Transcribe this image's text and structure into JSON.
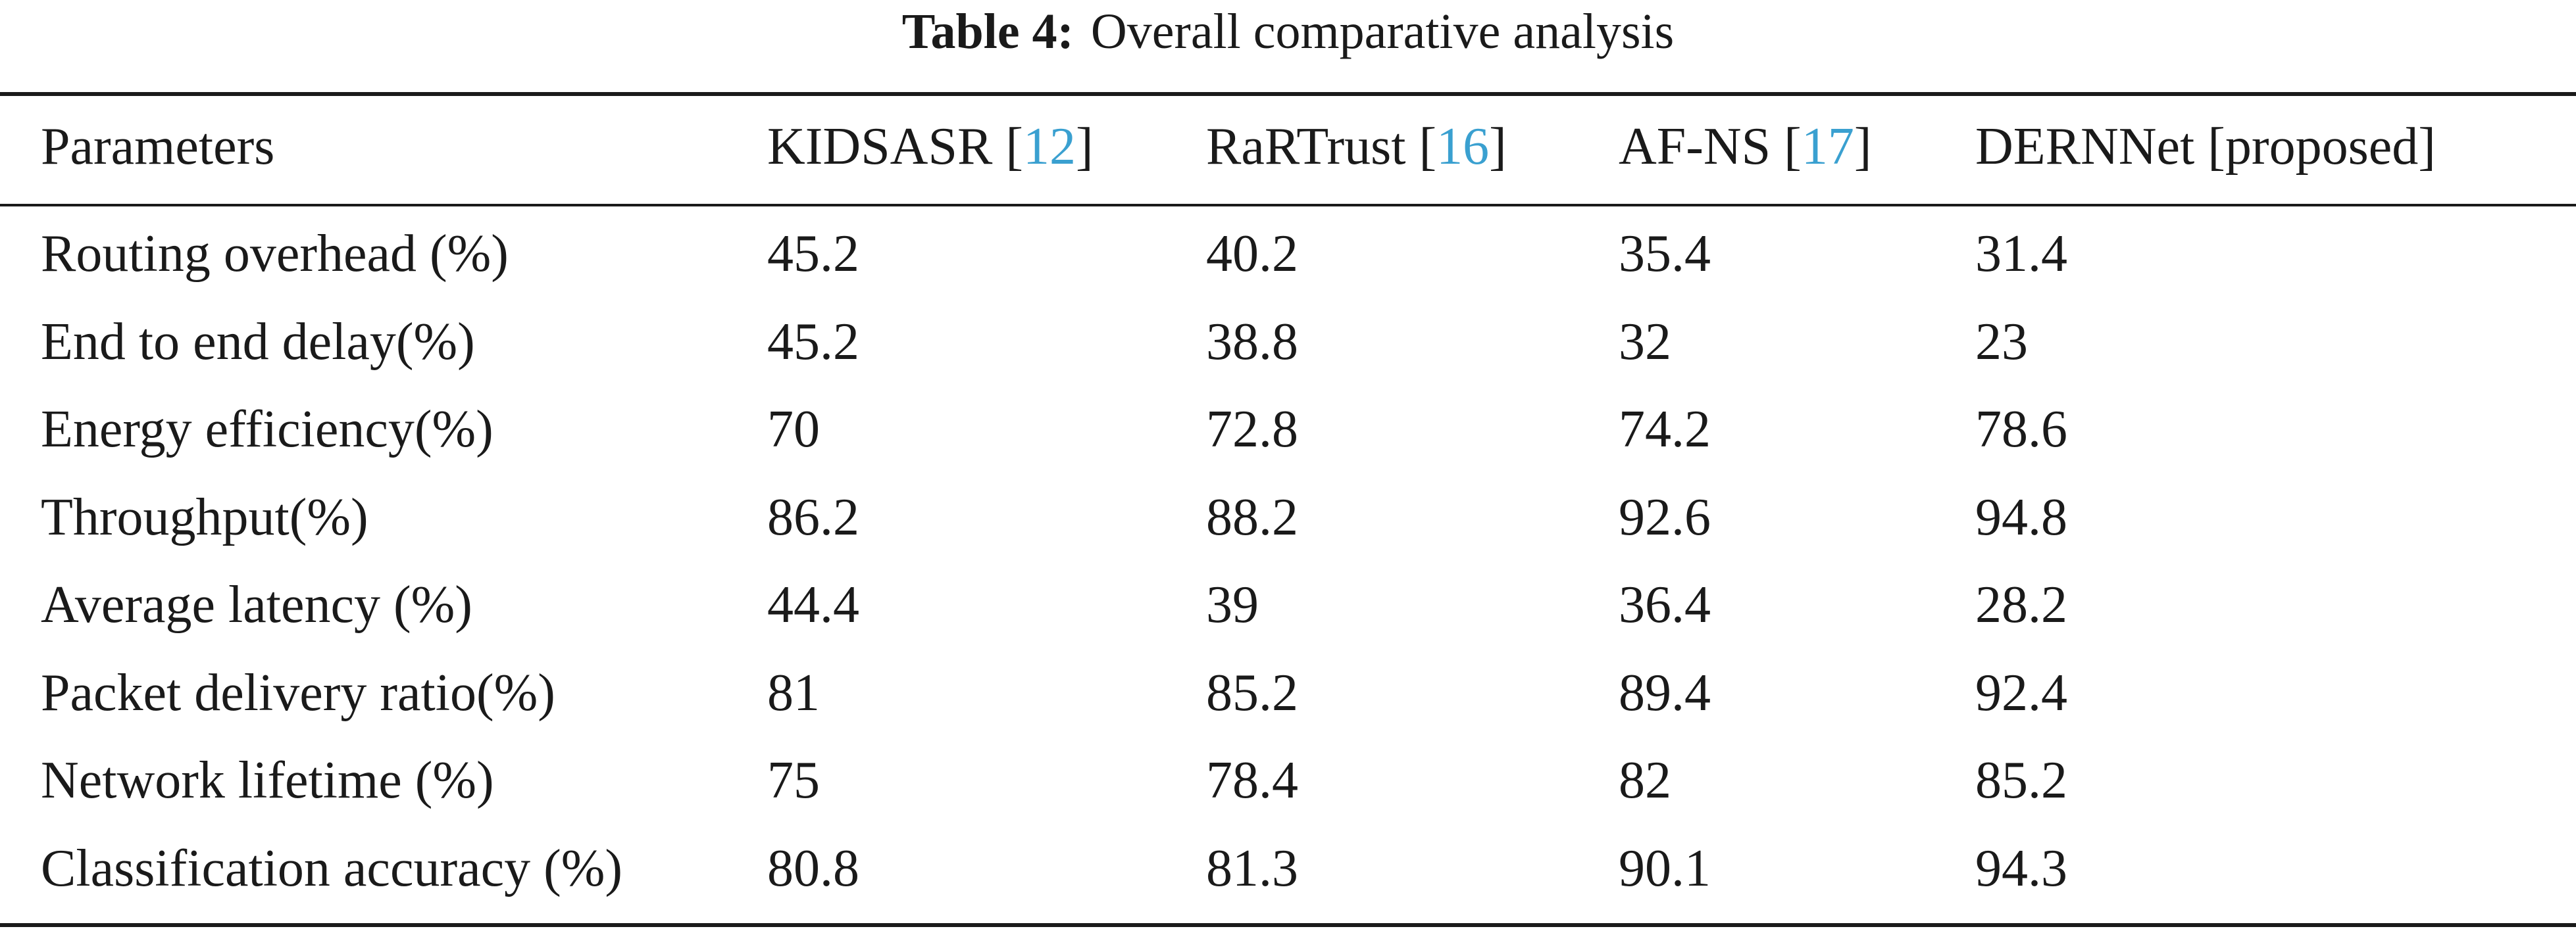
{
  "caption": {
    "label": "Table 4:",
    "title": "Overall comparative analysis"
  },
  "header": {
    "parameters": "Parameters",
    "col1": {
      "name": "KIDSASR",
      "ref": "12"
    },
    "col2": {
      "name": "RaRTrust",
      "ref": "16"
    },
    "col3": {
      "name": "AF-NS",
      "ref": "17"
    },
    "col4": {
      "name": "DERNNet [proposed]"
    }
  },
  "rows": [
    {
      "parameter": "Routing overhead (%)",
      "kidsasr": "45.2",
      "rartrust": "40.2",
      "afns": "35.4",
      "dernnet": "31.4"
    },
    {
      "parameter": "End to end delay(%)",
      "kidsasr": "45.2",
      "rartrust": "38.8",
      "afns": "32",
      "dernnet": "23"
    },
    {
      "parameter": "Energy efficiency(%)",
      "kidsasr": "70",
      "rartrust": "72.8",
      "afns": "74.2",
      "dernnet": "78.6"
    },
    {
      "parameter": "Throughput(%)",
      "kidsasr": "86.2",
      "rartrust": "88.2",
      "afns": "92.6",
      "dernnet": "94.8"
    },
    {
      "parameter": "Average latency (%)",
      "kidsasr": "44.4",
      "rartrust": "39",
      "afns": "36.4",
      "dernnet": "28.2"
    },
    {
      "parameter": "Packet delivery ratio(%)",
      "kidsasr": "81",
      "rartrust": "85.2",
      "afns": "89.4",
      "dernnet": "92.4"
    },
    {
      "parameter": "Network lifetime (%)",
      "kidsasr": "75",
      "rartrust": "78.4",
      "afns": "82",
      "dernnet": "85.2"
    },
    {
      "parameter": "Classification accuracy (%)",
      "kidsasr": "80.8",
      "rartrust": "81.3",
      "afns": "90.1",
      "dernnet": "94.3"
    }
  ],
  "colors": {
    "text": "#1a1a1a",
    "citation_link": "#3aa0d0",
    "background": "#ffffff"
  }
}
